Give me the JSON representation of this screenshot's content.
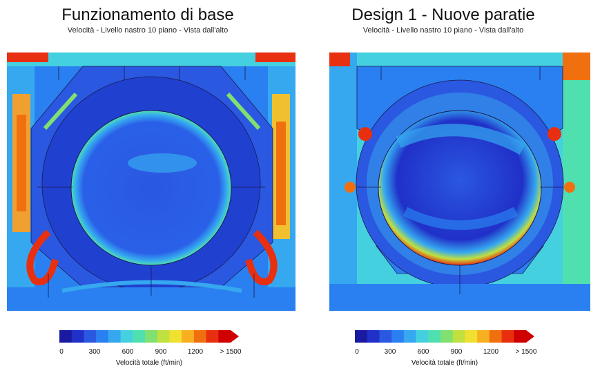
{
  "panels": [
    {
      "title": "Funzionamento di base",
      "subtitle": "Velocità - Livello nastro 10 piano - Vista dall'alto"
    },
    {
      "title": "Design 1 - Nuove paratie",
      "subtitle": "Velocità - Livello nastro 10 piano - Vista dall'alto"
    }
  ],
  "legend": {
    "ticks": [
      "0",
      "300",
      "600",
      "900",
      "1200",
      "> 1500"
    ],
    "caption": "Velocità totale (ft/min)",
    "colors": [
      "#1a1aa0",
      "#2030c8",
      "#2a58e0",
      "#2a80f0",
      "#35a8f0",
      "#45d0e0",
      "#50e0b0",
      "#80e070",
      "#c0e040",
      "#f0e030",
      "#f8b020",
      "#f07010",
      "#e83010",
      "#d00000"
    ]
  }
}
